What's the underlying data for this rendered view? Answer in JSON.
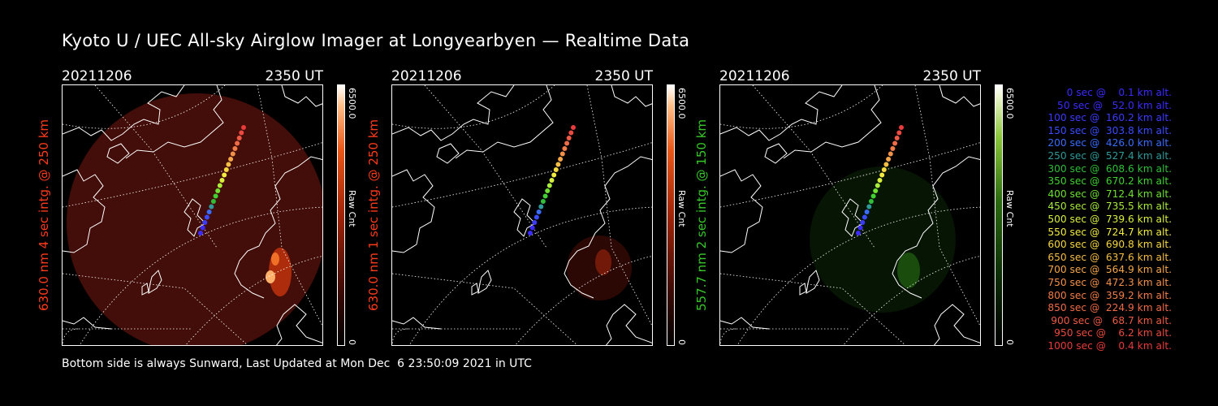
{
  "title": "Kyoto U / UEC All-sky Airglow Imager at Longyearbyen — Realtime Data",
  "footer": "Bottom side is always Sunward, Last Updated at Mon Dec  6 23:50:09 2021 in UTC",
  "panels": [
    {
      "date": "20211206",
      "time": "2350 UT",
      "ylabel": "630.0 nm 4 sec intg. @ 250 km",
      "ylabel_color": "#ff3a1a",
      "cbar_max": "6500.0",
      "cbar_label": "Raw Cnt",
      "cbar_min": "0",
      "colormap": "red",
      "glow_color": "#7a1a10"
    },
    {
      "date": "20211206",
      "time": "2350 UT",
      "ylabel": "630.0 nm 1 sec intg. @ 250 km",
      "ylabel_color": "#ff3a1a",
      "cbar_max": "6500.0",
      "cbar_label": "Raw Cnt",
      "cbar_min": "0",
      "colormap": "red",
      "glow_color": "#4a0e08"
    },
    {
      "date": "20211206",
      "time": "2350 UT",
      "ylabel": "557.7 nm 2 sec intg. @ 150 km",
      "ylabel_color": "#36c828",
      "cbar_max": "6500.0",
      "cbar_label": "Raw Cnt",
      "cbar_min": "0",
      "colormap": "green",
      "glow_color": "#0e2a08"
    }
  ],
  "legend": [
    {
      "text": "   0 sec @    0.1 km alt.",
      "color": "#3b2bff"
    },
    {
      "text": "  50 sec @   52.0 km alt.",
      "color": "#3b2bff"
    },
    {
      "text": " 100 sec @  160.2 km alt.",
      "color": "#3b3bff"
    },
    {
      "text": " 150 sec @  303.8 km alt.",
      "color": "#3a4cff"
    },
    {
      "text": " 200 sec @  426.0 km alt.",
      "color": "#3a6cff"
    },
    {
      "text": " 250 sec @  527.4 km alt.",
      "color": "#2f9a9a"
    },
    {
      "text": " 300 sec @  608.6 km alt.",
      "color": "#2fbf3a"
    },
    {
      "text": " 350 sec @  670.2 km alt.",
      "color": "#3fd230"
    },
    {
      "text": " 400 sec @  712.4 km alt.",
      "color": "#6ee030"
    },
    {
      "text": " 450 sec @  735.5 km alt.",
      "color": "#a9ec3a"
    },
    {
      "text": " 500 sec @  739.6 km alt.",
      "color": "#d9ef3e"
    },
    {
      "text": " 550 sec @  724.7 km alt.",
      "color": "#f2ec40"
    },
    {
      "text": " 600 sec @  690.8 km alt.",
      "color": "#f6d840"
    },
    {
      "text": " 650 sec @  637.6 km alt.",
      "color": "#f5bd44"
    },
    {
      "text": " 700 sec @  564.9 km alt.",
      "color": "#f4a648"
    },
    {
      "text": " 750 sec @  472.3 km alt.",
      "color": "#f39048"
    },
    {
      "text": " 800 sec @  359.2 km alt.",
      "color": "#f27c48"
    },
    {
      "text": " 850 sec @  224.9 km alt.",
      "color": "#f06a46"
    },
    {
      "text": " 900 sec @   68.7 km alt.",
      "color": "#ee5a44"
    },
    {
      "text": " 950 sec @    6.2 km alt.",
      "color": "#ec4a40"
    },
    {
      "text": "1000 sec @    0.4 km alt.",
      "color": "#ea3a3a"
    }
  ]
}
